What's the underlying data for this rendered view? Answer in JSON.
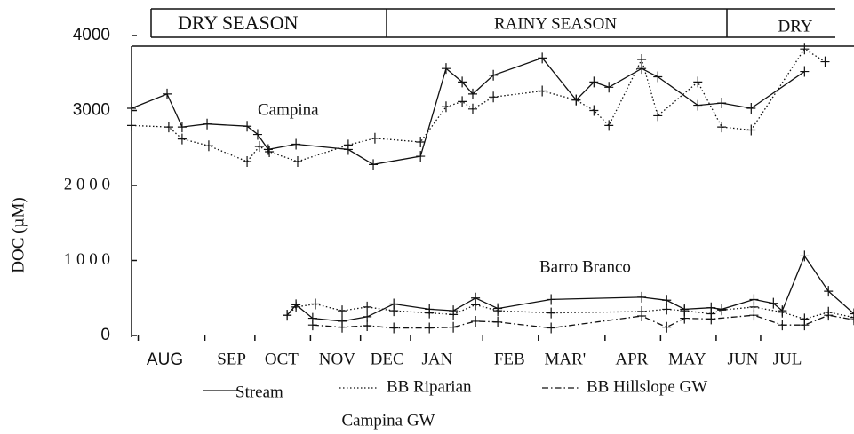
{
  "chart_data": {
    "type": "line",
    "y_label": "DOC (µM)",
    "seasons": [
      "DRY SEASON",
      "RAINY SEASON",
      "DRY"
    ],
    "annotations": [
      "Campina",
      "Barro Branco"
    ],
    "xlim": [
      0,
      13
    ],
    "ylim": [
      0,
      4000
    ],
    "yticks": [
      0,
      {
        "value": 1000,
        "label": "1 0 0 0"
      },
      {
        "value": 2000,
        "label": "2 0 0 0"
      },
      3000,
      4000
    ],
    "xticks": [
      {
        "value": 0.6,
        "label": "AUG"
      },
      {
        "value": 1.8,
        "label": "SEP"
      },
      {
        "value": 2.7,
        "label": "OCT"
      },
      {
        "value": 3.7,
        "label": "NOV"
      },
      {
        "value": 4.6,
        "label": "DEC"
      },
      {
        "value": 5.5,
        "label": "JAN"
      },
      {
        "value": 6.8,
        "label": "FEB"
      },
      {
        "value": 7.8,
        "label": "MAR'"
      },
      {
        "value": 9.0,
        "label": "APR"
      },
      {
        "value": 10.0,
        "label": "MAY"
      },
      {
        "value": 11.0,
        "label": "JUN"
      },
      {
        "value": 11.8,
        "label": "JUL"
      }
    ],
    "series": [
      {
        "name": "Stream",
        "color": "#111111",
        "style": "solid",
        "x": [
          0,
          0.64,
          0.91,
          1.36,
          2.08,
          2.27,
          2.46,
          2.96,
          3.9,
          4.35,
          5.2,
          5.66,
          5.95,
          6.14,
          6.51,
          7.39,
          8.0,
          8.32,
          8.59,
          9.18,
          9.47,
          10.19,
          10.62,
          11.15,
          12.11,
          null,
          2.8,
          2.96,
          3.26,
          3.79,
          4.24,
          4.72,
          5.36,
          5.79,
          6.19,
          6.59,
          7.55,
          9.18,
          9.63,
          9.95,
          10.43,
          10.62,
          11.2,
          11.55,
          11.71,
          12.11,
          12.54,
          13.0
        ],
        "values": [
          3030,
          3220,
          2780,
          2820,
          2790,
          2680,
          2480,
          2550,
          2480,
          2280,
          2390,
          3560,
          3380,
          3220,
          3470,
          3700,
          3140,
          3380,
          3310,
          3560,
          3450,
          3070,
          3100,
          3030,
          3520,
          null,
          270,
          410,
          230,
          190,
          250,
          420,
          350,
          330,
          500,
          360,
          480,
          510,
          470,
          350,
          370,
          350,
          480,
          430,
          330,
          1060,
          590,
          290
        ]
      },
      {
        "name": "BB Riparian",
        "color": "#111111",
        "style": "dotted",
        "x": [
          2.8,
          2.96,
          3.31,
          3.79,
          4.24,
          4.72,
          5.36,
          5.79,
          6.19,
          6.59,
          7.55,
          9.18,
          9.63,
          9.95,
          10.43,
          10.62,
          11.2,
          11.71,
          12.11,
          12.54,
          13.0
        ],
        "values": [
          270,
          380,
          420,
          330,
          380,
          330,
          300,
          280,
          410,
          330,
          300,
          320,
          350,
          330,
          290,
          340,
          380,
          310,
          220,
          310,
          240
        ]
      },
      {
        "name": "BB Hillslope GW",
        "color": "#111111",
        "style": "dashdot",
        "x": [
          3.26,
          3.79,
          4.24,
          4.72,
          5.36,
          5.79,
          6.19,
          6.59,
          7.55,
          9.18,
          9.63,
          9.95,
          10.43,
          11.2,
          11.71,
          12.11,
          12.54,
          13.0
        ],
        "values": [
          140,
          110,
          130,
          100,
          100,
          110,
          190,
          180,
          100,
          260,
          110,
          230,
          220,
          270,
          140,
          140,
          270,
          210
        ]
      },
      {
        "name": "Campina GW",
        "color": "#111111",
        "style": "dotted",
        "x": [
          0,
          0.67,
          0.91,
          1.39,
          2.08,
          2.3,
          2.48,
          2.99,
          3.9,
          4.38,
          5.2,
          5.66,
          5.95,
          6.14,
          6.51,
          7.39,
          8.0,
          8.32,
          8.59,
          9.18,
          9.47,
          10.19,
          10.62,
          11.15,
          12.11,
          12.48
        ],
        "values": [
          2800,
          2780,
          2620,
          2530,
          2320,
          2520,
          2450,
          2320,
          2540,
          2630,
          2580,
          3050,
          3120,
          3020,
          3180,
          3260,
          3140,
          3000,
          2800,
          3680,
          2930,
          3380,
          2780,
          2740,
          3820,
          3650
        ]
      }
    ]
  }
}
